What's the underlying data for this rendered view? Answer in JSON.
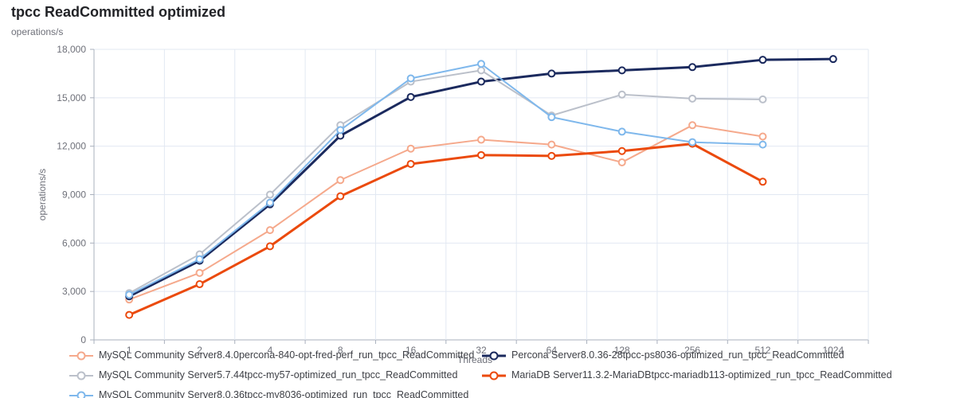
{
  "header": {
    "title": "tpcc ReadCommitted optimized",
    "subtitle": "operations/s"
  },
  "chart_data": {
    "type": "line",
    "title": "tpcc ReadCommitted optimized",
    "xlabel": "Threads",
    "ylabel": "operations/s",
    "x_axis_type": "category (powers of 2)",
    "categories": [
      1,
      2,
      4,
      8,
      16,
      32,
      64,
      128,
      256,
      512,
      1024
    ],
    "ylim": [
      0,
      18000
    ],
    "y_ticks": [
      0,
      3000,
      6000,
      9000,
      12000,
      15000,
      18000
    ],
    "y_tick_labels": [
      "0",
      "3,000",
      "6,000",
      "9,000",
      "12,000",
      "15,000",
      "18,000"
    ],
    "grid": true,
    "legend_position": "bottom",
    "marker": "empty-circle",
    "series": [
      {
        "id": "mysql-840-percona-opt-fred",
        "name": "MySQL Community Server8.4.0percona-840-opt-fred-perf_run_tpcc_ReadCommitted",
        "color": "#F5A98C",
        "line_width": 2,
        "values": [
          2500,
          4150,
          6800,
          9900,
          11850,
          12400,
          12100,
          11000,
          13300,
          12600
        ]
      },
      {
        "id": "percona-8036-28-ps8036",
        "name": "Percona Server8.0.36-28tpcc-ps8036-optimized_run_tpcc_ReadCommitted",
        "color": "#1B2A5E",
        "line_width": 3,
        "values": [
          2700,
          4900,
          8400,
          12650,
          15050,
          16000,
          16500,
          16700,
          16900,
          17350,
          17400
        ]
      },
      {
        "id": "mysql-5744-my57",
        "name": "MySQL Community Server5.7.44tpcc-my57-optimized_run_tpcc_ReadCommitted",
        "color": "#BBC0CA",
        "line_width": 2,
        "values": [
          2900,
          5300,
          9000,
          13300,
          16000,
          16700,
          13900,
          15200,
          14950,
          14900
        ]
      },
      {
        "id": "mariadb-1132-mariadb113",
        "name": "MariaDB Server11.3.2-MariaDBtpcc-mariadb113-optimized_run_tpcc_ReadCommitted",
        "color": "#EB4A0D",
        "line_width": 3,
        "values": [
          1550,
          3450,
          5800,
          8900,
          10900,
          11450,
          11400,
          11700,
          12150,
          9800
        ]
      },
      {
        "id": "mysql-8036-my8036",
        "name": "MySQL Community Server8.0.36tpcc-my8036-optimized_run_tpcc_ReadCommitted",
        "color": "#7FB8EC",
        "line_width": 2,
        "values": [
          2800,
          5000,
          8500,
          13000,
          16200,
          17100,
          13800,
          12900,
          12250,
          12100
        ]
      }
    ],
    "legend_columns": [
      [
        0,
        2,
        4
      ],
      [
        1,
        3
      ]
    ]
  },
  "colors": {
    "grid_line": "#E2E8F2",
    "axis_line": "#A9B0BC",
    "tick_text": "#6e7079",
    "title_text": "#222327",
    "legend_text": "#3d3f45",
    "background": "#ffffff"
  }
}
